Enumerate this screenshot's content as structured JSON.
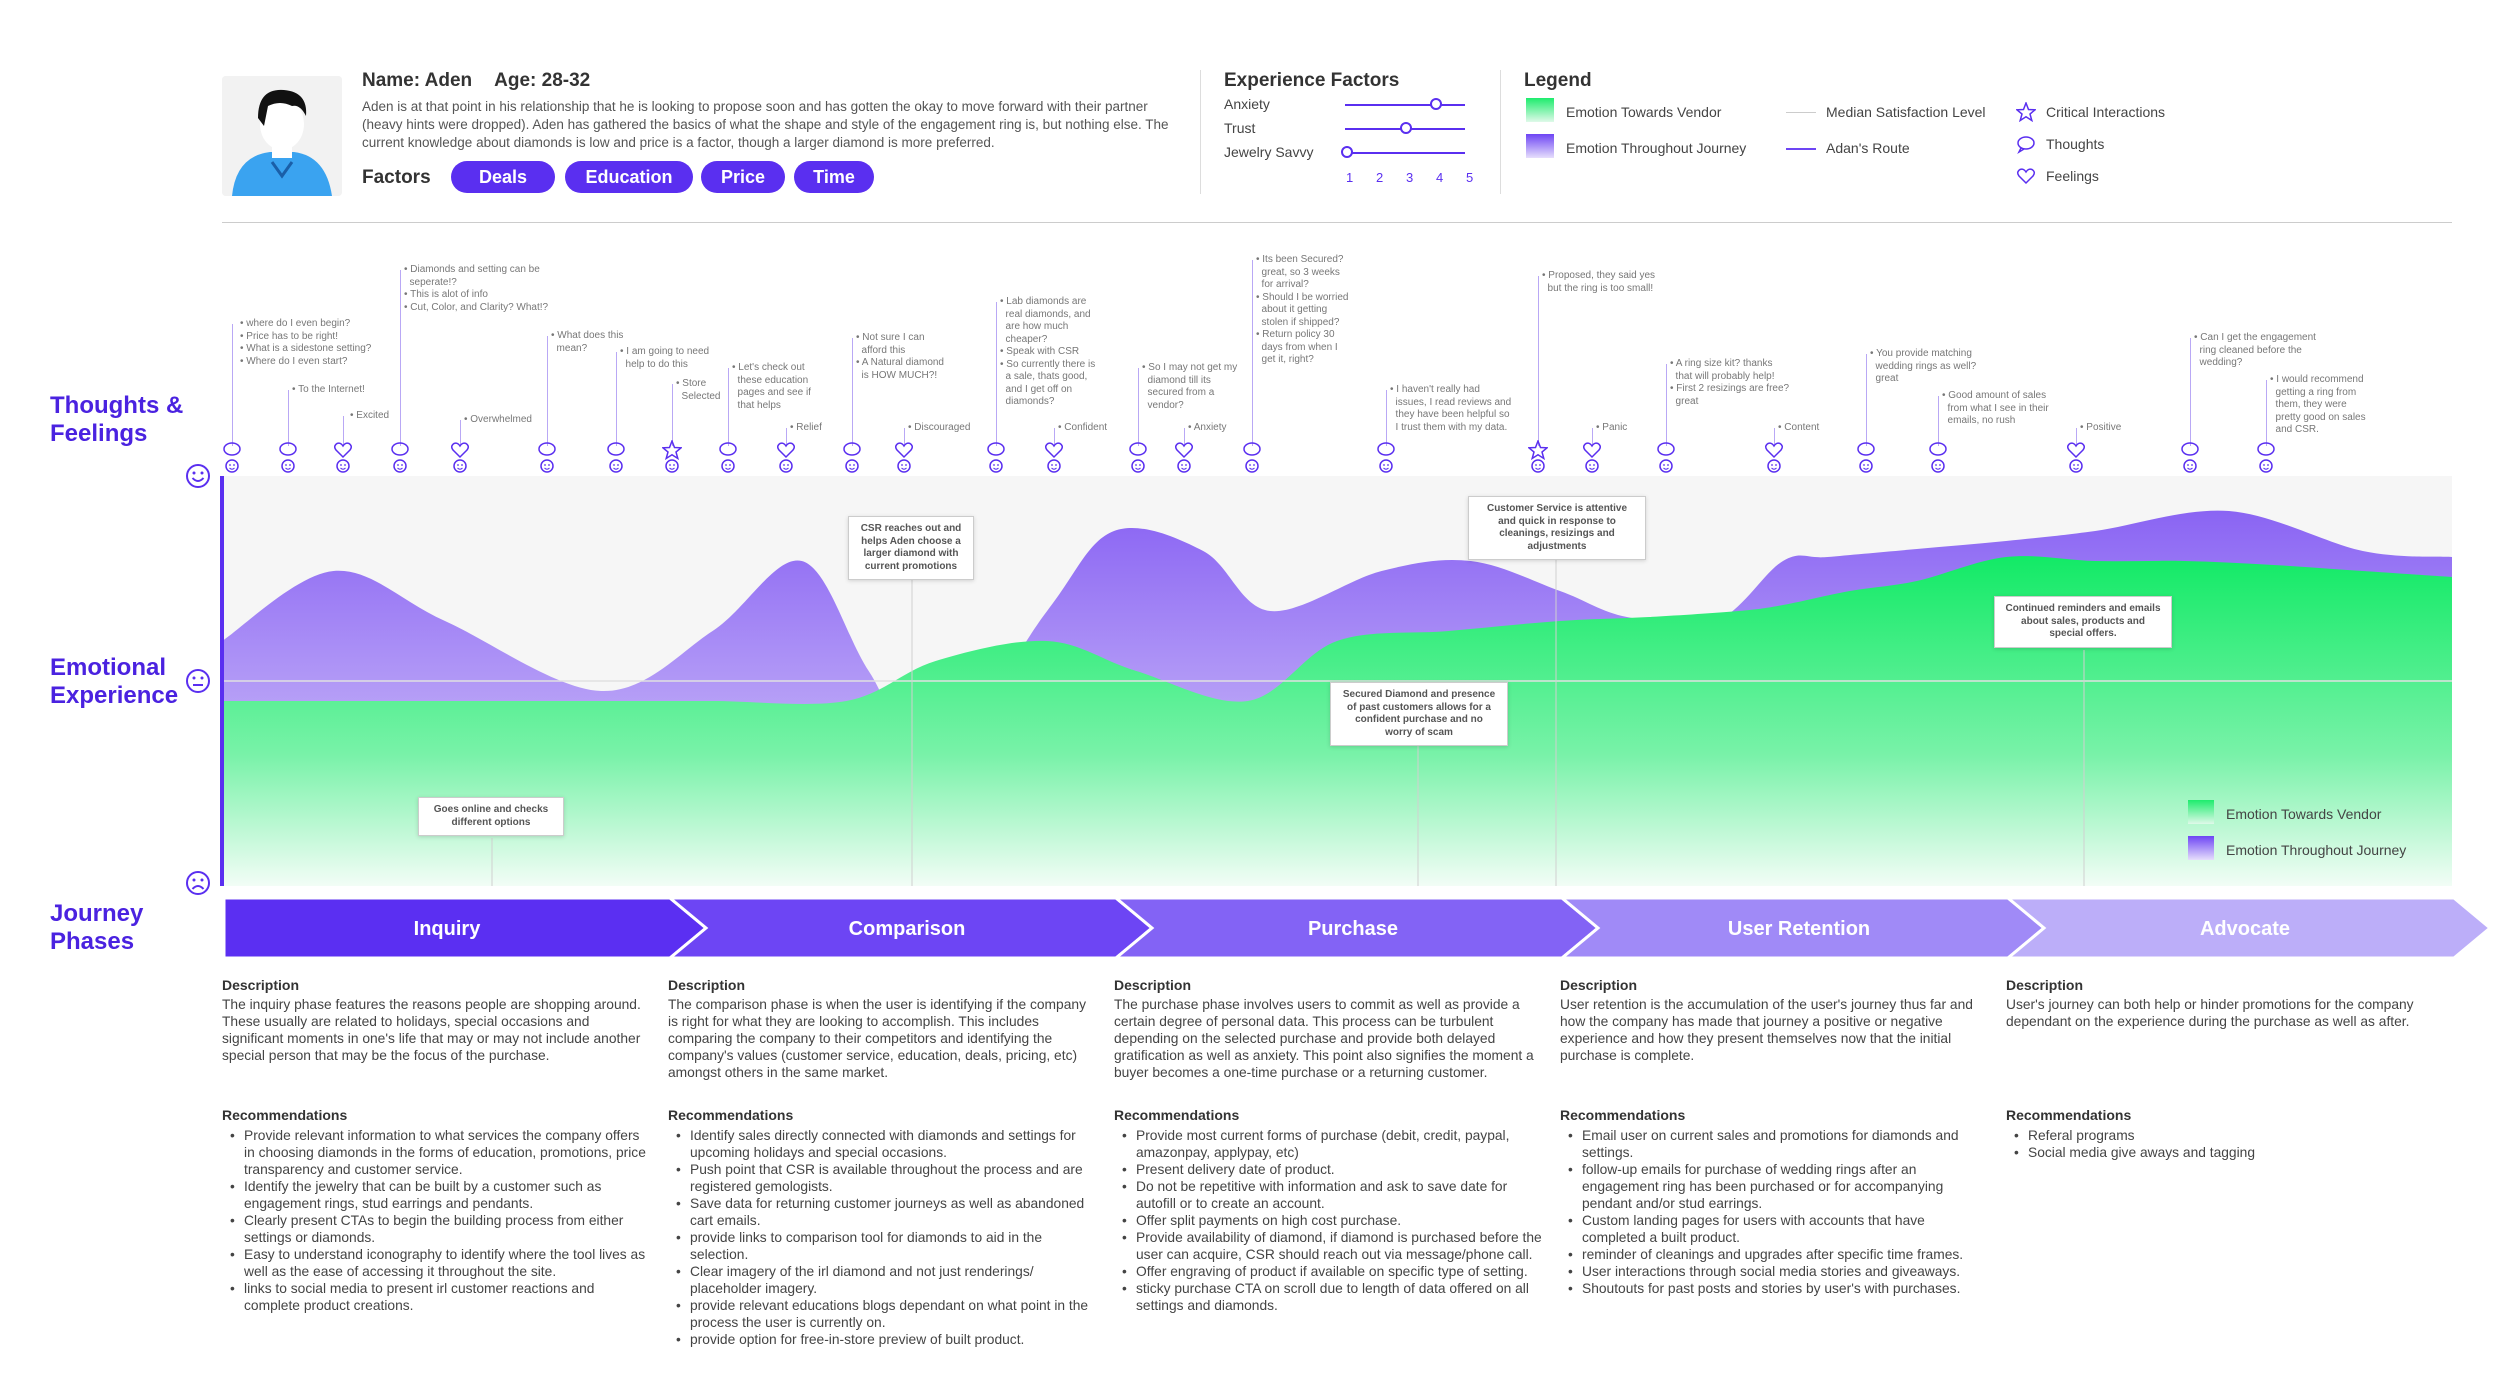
{
  "persona": {
    "name": "Name: Aden",
    "age": "Age: 28-32",
    "description": "Aden is at that point in his relationship that he is looking to propose soon and has gotten the okay to move forward with their partner (heavy hints were dropped). Aden has gathered the basics of what the shape and style of the engagement ring is, but nothing else. The current knowledge about diamonds is low and price is a factor, though a larger diamond is more preferred.",
    "factors_label": "Factors",
    "factors": [
      "Deals",
      "Education",
      "Price",
      "Time"
    ]
  },
  "experience_factors": {
    "title": "Experience Factors",
    "items": [
      {
        "label": "Anxiety",
        "value": 4
      },
      {
        "label": "Trust",
        "value": 3
      },
      {
        "label": "Jewelry Savvy",
        "value": 1
      }
    ],
    "scale": [
      "1",
      "2",
      "3",
      "4",
      "5"
    ]
  },
  "legend": {
    "title": "Legend",
    "items": [
      "Emotion Towards Vendor",
      "Emotion Throughout Journey",
      "Median Satisfaction Level",
      "Adan's Route",
      "Critical Interactions",
      "Thoughts",
      "Feelings"
    ]
  },
  "sections": {
    "thoughts": "Thoughts & Feelings",
    "emotional": "Emotional Experience",
    "phases": "Journey Phases"
  },
  "thought_notes": [
    "• where do I even begin?\n• Price has to be right!\n• What is a sidestone setting?\n• Where do I even start?",
    "• To the Internet!",
    "• Excited",
    "• Diamonds and setting can be\n  seperate!?\n• This is alot of info\n• Cut, Color, and Clarity? What!?",
    "• Overwhelmed",
    "• What does this\n  mean?",
    "• I am going to need\n  help to do this",
    "• Store\n  Selected",
    "• Let's check out\n  these education\n  pages and see if\n  that helps",
    "• Relief",
    "• Not sure I can\n  afford this\n• A Natural diamond\n  is HOW MUCH?!",
    "• Discouraged",
    "• Lab diamonds are\n  real diamonds, and\n  are how much\n  cheaper?\n• Speak with CSR\n• So currently there is\n  a sale, thats good,\n  and I get off on\n  diamonds?",
    "• Confident",
    "• So I may not get my\n  diamond till its\n  secured from a\n  vendor?",
    "• Anxiety",
    "• Its been Secured?\n  great, so 3 weeks\n  for arrival?\n• Should I be worried\n  about it getting\n  stolen if shipped?\n• Return policy 30\n  days from when I\n  get it, right?",
    "• I haven't really had\n  issues, I read reviews and\n  they have been helpful so\n  I trust them with my data.",
    "• Proposed, they said yes\n  but the ring is too small!",
    "• Panic",
    "• A ring size kit? thanks\n  that will probably help!\n• First 2 resizings are free?\n  great",
    "• Content",
    "• You provide matching\n  wedding rings as well?\n  great",
    "• Good amount of sales\n  from what I see in their\n  emails, no rush",
    "• Positive",
    "• Can I get the engagement\n  ring cleaned before the\n  wedding?",
    "• I would recommend\n  getting a ring from\n  them, they were\n  pretty good on sales\n  and CSR."
  ],
  "callouts": [
    "Goes online and checks\ndifferent options",
    "CSR reaches out and\nhelps Aden choose a\nlarger diamond with\ncurrent promotions",
    "Secured Diamond and presence\nof past customers allows for a\nconfident purchase and no\nworry of scam",
    "Customer Service is attentive\nand quick in response to\ncleanings, resizings and\nadjustments",
    "Continued reminders and emails\nabout sales, products and\nspecial offers."
  ],
  "chart_legend": [
    "Emotion Towards Vendor",
    "Emotion Throughout Journey"
  ],
  "chart_data": {
    "type": "area",
    "title": "Emotional Experience",
    "xlabel": "Journey Phases",
    "ylabel": "Emotion",
    "categories": [
      "Inquiry",
      "Comparison",
      "Purchase",
      "User Retention",
      "Advocate"
    ],
    "x_range": [
      0,
      100
    ],
    "ylim": [
      -1,
      1
    ],
    "median": 0,
    "series": [
      {
        "name": "Emotion Throughout Journey",
        "color": "#8e6cf2",
        "x": [
          0,
          5,
          10,
          17,
          22,
          26,
          29,
          32,
          37,
          40,
          44,
          47,
          52,
          56,
          60,
          63,
          67,
          70,
          72,
          76,
          80,
          84,
          90,
          96,
          100
        ],
        "y": [
          0.2,
          0.55,
          0.3,
          -0.05,
          0.25,
          0.6,
          0.05,
          -0.4,
          0.35,
          0.75,
          0.65,
          0.35,
          0.55,
          0.6,
          0.45,
          0.32,
          0.3,
          0.6,
          0.62,
          0.66,
          0.7,
          0.75,
          0.85,
          0.65,
          0.62
        ]
      },
      {
        "name": "Emotion Towards Vendor",
        "color": "#1eec6d",
        "x": [
          0,
          5,
          17,
          22,
          28,
          32,
          37,
          41,
          46,
          50,
          55,
          60,
          64,
          68,
          70,
          73,
          76,
          80,
          84,
          88,
          92,
          96,
          100
        ],
        "y": [
          -0.1,
          -0.1,
          -0.1,
          -0.1,
          -0.1,
          0.1,
          0.2,
          0.05,
          -0.1,
          0.2,
          0.25,
          0.3,
          0.32,
          0.35,
          0.38,
          0.45,
          0.5,
          0.62,
          0.6,
          0.6,
          0.58,
          0.55,
          0.52
        ]
      }
    ]
  },
  "phases": [
    {
      "name": "Inquiry",
      "color": "#5b2ff2",
      "desc_label": "Description",
      "desc": "The inquiry phase features the reasons people are shopping around. These usually are related to holidays, special occasions and significant moments in one's life that may or may not include another special person that may be the focus of the purchase.",
      "rec_label": "Recommendations",
      "recs": [
        "Provide relevant information to what services the company offers in choosing diamonds in the forms of education, promotions, price transparency and customer service.",
        "Identify the jewelry that can be built by a customer such as engagement rings, stud earrings and pendants.",
        "Clearly present CTAs to begin the building process from either settings or diamonds.",
        "Easy to understand iconography to identify where the tool lives as well as the ease of accessing it throughout the site.",
        "links to social media to present irl customer reactions and complete product creations."
      ]
    },
    {
      "name": "Comparison",
      "color": "#6d45f4",
      "desc_label": "Description",
      "desc": "The comparison phase is when the user is identifying if the company is right for what they are looking to accomplish. This includes comparing the company to their competitors and identifying the company's values (customer service, education, deals, pricing, etc) amongst others in the same market.",
      "rec_label": "Recommendations",
      "recs": [
        "Identify sales directly connected with diamonds and settings for upcoming holidays and special occasions.",
        "Push point that CSR is available throughout the process and are registered gemologists.",
        "Save data for returning customer journeys as well as abandoned cart emails.",
        "provide links to comparison tool for diamonds to aid in the selection.",
        "Clear imagery of the irl diamond and not just renderings/ placeholder imagery.",
        "provide relevant educations blogs dependant on what point in the process the user is currently on.",
        "provide option for free-in-store preview of built product."
      ]
    },
    {
      "name": "Purchase",
      "color": "#8363f5",
      "desc_label": "Description",
      "desc": "The purchase phase involves users to commit as well as provide a certain degree of personal data. This process can be turbulent depending on the selected purchase and provide both delayed gratification as well as anxiety. This point also signifies the moment a buyer becomes a one-time purchase or a returning customer.",
      "rec_label": "Recommendations",
      "recs": [
        "Provide most current forms of purchase (debit, credit, paypal, amazonpay, applypay, etc)",
        "Present delivery date of product.",
        "Do not be repetitive with information and ask to save date for autofill or to create an account.",
        "Offer split payments on high cost purchase.",
        "Provide availability of diamond, if diamond is purchased before the user can acquire, CSR should reach out via message/phone call.",
        "Offer engraving of product if available on specific type of setting.",
        "sticky purchase CTA on scroll due to length of data offered on all settings and diamonds."
      ]
    },
    {
      "name": "User Retention",
      "color": "#a08af7",
      "desc_label": "Description",
      "desc": "User retention is the accumulation of the user's journey thus far and how the company has made that journey a positive or negative experience and how they present themselves now that the initial purchase is complete.",
      "rec_label": "Recommendations",
      "recs": [
        "Email user on current sales and promotions for diamonds and settings.",
        "follow-up emails for purchase of wedding rings after an engagement ring has been purchased or for accompanying pendant and/or stud earrings.",
        "Custom landing pages for users with accounts that have completed a built product.",
        "reminder of cleanings and upgrades after specific time frames.",
        "User interactions through social media stories and giveaways.",
        "Shoutouts for past posts and stories by user's with purchases."
      ]
    },
    {
      "name": "Advocate",
      "color": "#bcaef9",
      "desc_label": "Description",
      "desc": "User's journey can both help or hinder promotions for the company dependant on the experience during the purchase as well as after.",
      "rec_label": "Recommendations",
      "recs": [
        "Referal programs",
        "Social media give aways and tagging"
      ]
    }
  ]
}
